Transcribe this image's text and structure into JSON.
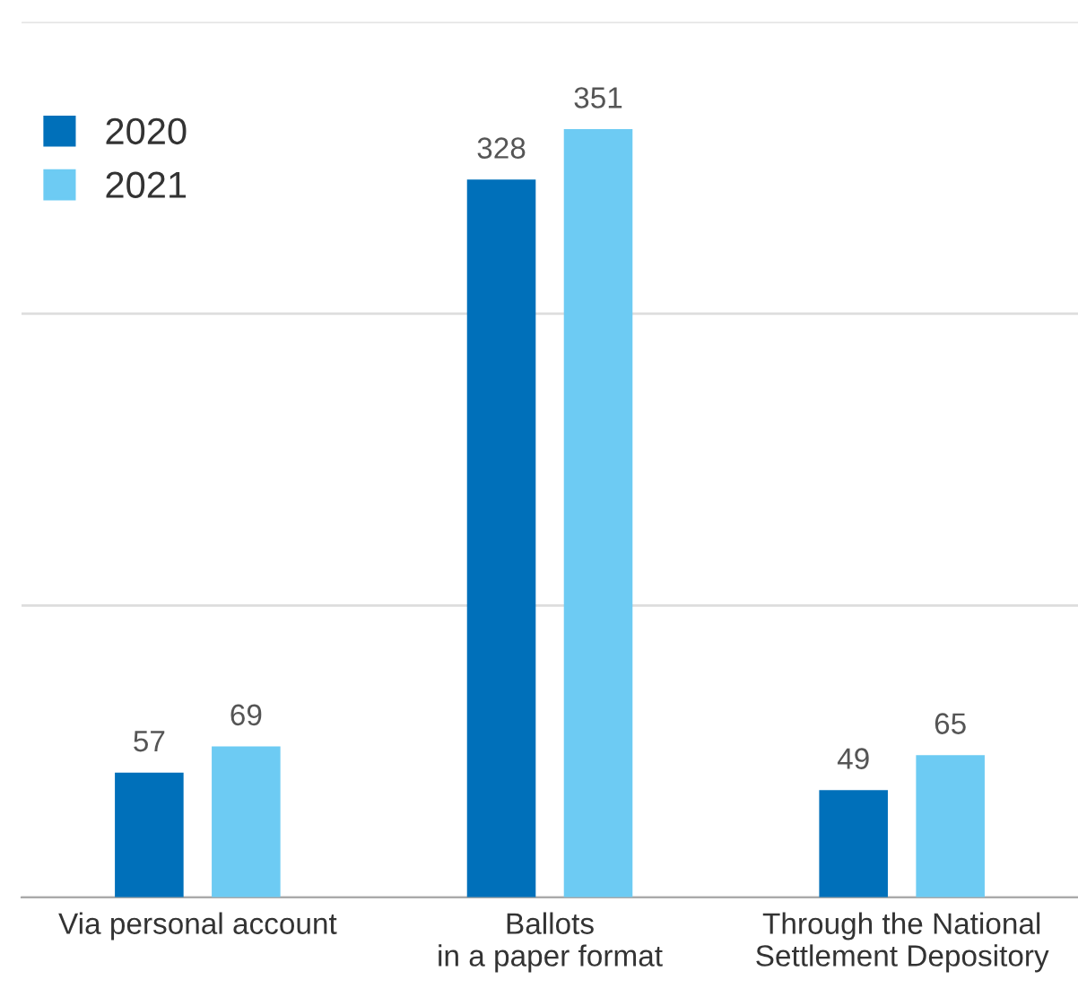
{
  "chart_data": {
    "type": "bar",
    "categories": [
      "Via personal account",
      "Ballots\nin a paper format",
      "Through the National\nSettlement Depository"
    ],
    "series": [
      {
        "name": "2020",
        "color": "#0070ba",
        "values": [
          57,
          328,
          49
        ]
      },
      {
        "name": "2021",
        "color": "#6dcbf3",
        "values": [
          69,
          351,
          65
        ]
      }
    ],
    "ylim": [
      0,
      400
    ],
    "yticks": [
      {
        "value": 0,
        "label": null
      },
      {
        "value": 133.3,
        "label": null
      },
      {
        "value": 266.7,
        "label": null
      },
      {
        "value": 400,
        "label": null
      }
    ],
    "tick_labels": "x",
    "grid": "y",
    "legend": "top left",
    "data_labels": true
  }
}
